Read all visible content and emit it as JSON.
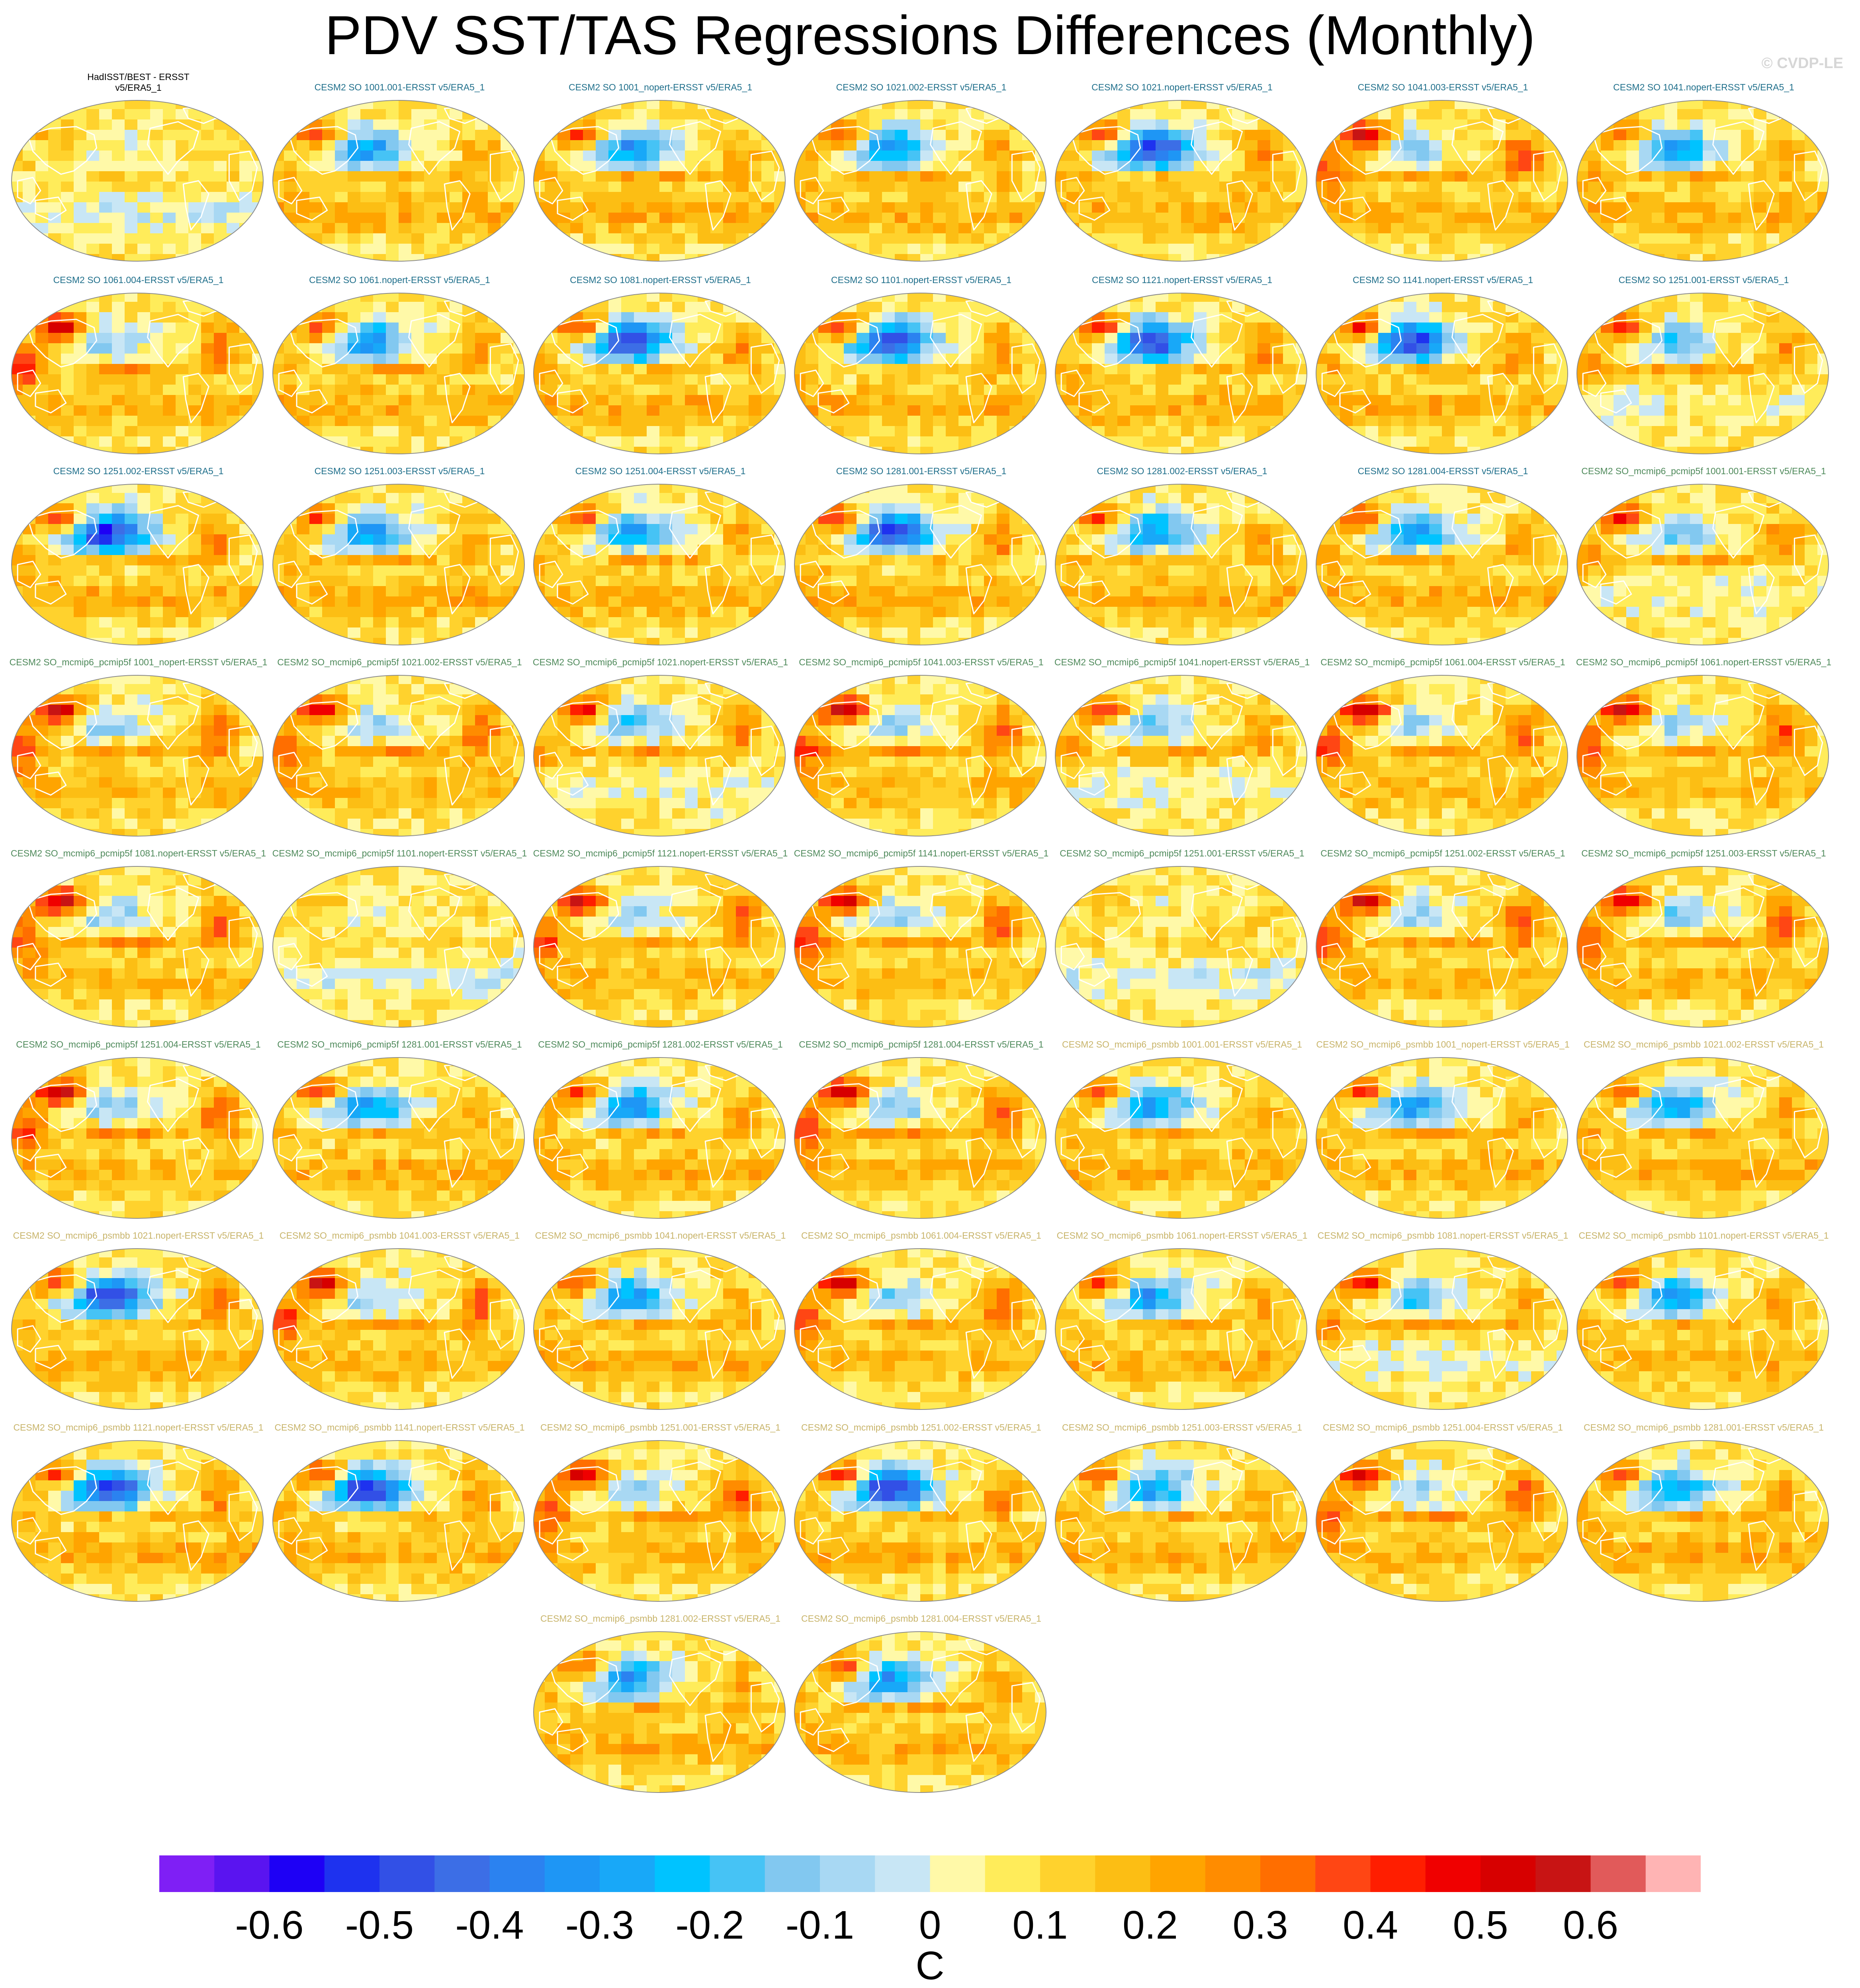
{
  "title": "PDV SST/TAS Regressions Differences (Monthly)",
  "watermark": "© CVDP-LE",
  "colors": {
    "obs_label": "#000000",
    "cesm2_so_label": "#1f6f8b",
    "pcmip5f_label": "#4f8a5b",
    "psmbb_label": "#c8b46a",
    "coastline": "#ffffff"
  },
  "panels": [
    {
      "label": "HadISST/BEST - ERSST v5/ERA5_1",
      "group": "obs",
      "pattern": "weak"
    },
    {
      "label": "CESM2 SO 1001.001-ERSST v5/ERA5_1",
      "group": "cesm2_so",
      "pattern": "cold"
    },
    {
      "label": "CESM2 SO 1001_nopert-ERSST v5/ERA5_1",
      "group": "cesm2_so",
      "pattern": "cold"
    },
    {
      "label": "CESM2 SO 1021.002-ERSST v5/ERA5_1",
      "group": "cesm2_so",
      "pattern": "cold"
    },
    {
      "label": "CESM2 SO 1021.nopert-ERSST v5/ERA5_1",
      "group": "cesm2_so",
      "pattern": "verycold"
    },
    {
      "label": "CESM2 SO 1041.003-ERSST v5/ERA5_1",
      "group": "cesm2_so",
      "pattern": "warm"
    },
    {
      "label": "CESM2 SO 1041.nopert-ERSST v5/ERA5_1",
      "group": "cesm2_so",
      "pattern": "cold"
    },
    {
      "label": "CESM2 SO 1061.004-ERSST v5/ERA5_1",
      "group": "cesm2_so",
      "pattern": "warm"
    },
    {
      "label": "CESM2 SO 1061.nopert-ERSST v5/ERA5_1",
      "group": "cesm2_so",
      "pattern": "cold"
    },
    {
      "label": "CESM2 SO 1081.nopert-ERSST v5/ERA5_1",
      "group": "cesm2_so",
      "pattern": "verycold"
    },
    {
      "label": "CESM2 SO 1101.nopert-ERSST v5/ERA5_1",
      "group": "cesm2_so",
      "pattern": "verycold"
    },
    {
      "label": "CESM2 SO 1121.nopert-ERSST v5/ERA5_1",
      "group": "cesm2_so",
      "pattern": "verycold"
    },
    {
      "label": "CESM2 SO 1141.nopert-ERSST v5/ERA5_1",
      "group": "cesm2_so",
      "pattern": "verycold"
    },
    {
      "label": "CESM2 SO 1251.001-ERSST v5/ERA5_1",
      "group": "cesm2_so",
      "pattern": "mixed"
    },
    {
      "label": "CESM2 SO 1251.002-ERSST v5/ERA5_1",
      "group": "cesm2_so",
      "pattern": "verycold"
    },
    {
      "label": "CESM2 SO 1251.003-ERSST v5/ERA5_1",
      "group": "cesm2_so",
      "pattern": "cold"
    },
    {
      "label": "CESM2 SO 1251.004-ERSST v5/ERA5_1",
      "group": "cesm2_so",
      "pattern": "cold"
    },
    {
      "label": "CESM2 SO 1281.001-ERSST v5/ERA5_1",
      "group": "cesm2_so",
      "pattern": "verycold"
    },
    {
      "label": "CESM2 SO 1281.002-ERSST v5/ERA5_1",
      "group": "cesm2_so",
      "pattern": "cold"
    },
    {
      "label": "CESM2 SO 1281.004-ERSST v5/ERA5_1",
      "group": "cesm2_so",
      "pattern": "cold"
    },
    {
      "label": "CESM2 SO_mcmip6_pcmip5f 1001.001-ERSST v5/ERA5_1",
      "group": "pcmip5f",
      "pattern": "mixed"
    },
    {
      "label": "CESM2 SO_mcmip6_pcmip5f 1001_nopert-ERSST v5/ERA5_1",
      "group": "pcmip5f",
      "pattern": "warm"
    },
    {
      "label": "CESM2 SO_mcmip6_pcmip5f 1021.002-ERSST v5/ERA5_1",
      "group": "pcmip5f",
      "pattern": "warm"
    },
    {
      "label": "CESM2 SO_mcmip6_pcmip5f 1021.nopert-ERSST v5/ERA5_1",
      "group": "pcmip5f",
      "pattern": "mixed"
    },
    {
      "label": "CESM2 SO_mcmip6_pcmip5f 1041.003-ERSST v5/ERA5_1",
      "group": "pcmip5f",
      "pattern": "warm"
    },
    {
      "label": "CESM2 SO_mcmip6_pcmip5f 1041.nopert-ERSST v5/ERA5_1",
      "group": "pcmip5f",
      "pattern": "mixed"
    },
    {
      "label": "CESM2 SO_mcmip6_pcmip5f 1061.004-ERSST v5/ERA5_1",
      "group": "pcmip5f",
      "pattern": "warm"
    },
    {
      "label": "CESM2 SO_mcmip6_pcmip5f 1061.nopert-ERSST v5/ERA5_1",
      "group": "pcmip5f",
      "pattern": "warm"
    },
    {
      "label": "CESM2 SO_mcmip6_pcmip5f 1081.nopert-ERSST v5/ERA5_1",
      "group": "pcmip5f",
      "pattern": "warm"
    },
    {
      "label": "CESM2 SO_mcmip6_pcmip5f 1101.nopert-ERSST v5/ERA5_1",
      "group": "pcmip5f",
      "pattern": "weak"
    },
    {
      "label": "CESM2 SO_mcmip6_pcmip5f 1121.nopert-ERSST v5/ERA5_1",
      "group": "pcmip5f",
      "pattern": "warm"
    },
    {
      "label": "CESM2 SO_mcmip6_pcmip5f 1141.nopert-ERSST v5/ERA5_1",
      "group": "pcmip5f",
      "pattern": "warm"
    },
    {
      "label": "CESM2 SO_mcmip6_pcmip5f 1251.001-ERSST v5/ERA5_1",
      "group": "pcmip5f",
      "pattern": "weak"
    },
    {
      "label": "CESM2 SO_mcmip6_pcmip5f 1251.002-ERSST v5/ERA5_1",
      "group": "pcmip5f",
      "pattern": "warm"
    },
    {
      "label": "CESM2 SO_mcmip6_pcmip5f 1251.003-ERSST v5/ERA5_1",
      "group": "pcmip5f",
      "pattern": "warm"
    },
    {
      "label": "CESM2 SO_mcmip6_pcmip5f 1251.004-ERSST v5/ERA5_1",
      "group": "pcmip5f",
      "pattern": "warm"
    },
    {
      "label": "CESM2 SO_mcmip6_pcmip5f 1281.001-ERSST v5/ERA5_1",
      "group": "pcmip5f",
      "pattern": "cold"
    },
    {
      "label": "CESM2 SO_mcmip6_pcmip5f 1281.002-ERSST v5/ERA5_1",
      "group": "pcmip5f",
      "pattern": "cold"
    },
    {
      "label": "CESM2 SO_mcmip6_pcmip5f 1281.004-ERSST v5/ERA5_1",
      "group": "pcmip5f",
      "pattern": "warm"
    },
    {
      "label": "CESM2 SO_mcmip6_psmbb 1001.001-ERSST v5/ERA5_1",
      "group": "psmbb",
      "pattern": "cold"
    },
    {
      "label": "CESM2 SO_mcmip6_psmbb 1001_nopert-ERSST v5/ERA5_1",
      "group": "psmbb",
      "pattern": "cold"
    },
    {
      "label": "CESM2 SO_mcmip6_psmbb 1021.002-ERSST v5/ERA5_1",
      "group": "psmbb",
      "pattern": "cold"
    },
    {
      "label": "CESM2 SO_mcmip6_psmbb 1021.nopert-ERSST v5/ERA5_1",
      "group": "psmbb",
      "pattern": "verycold"
    },
    {
      "label": "CESM2 SO_mcmip6_psmbb 1041.003-ERSST v5/ERA5_1",
      "group": "psmbb",
      "pattern": "warm"
    },
    {
      "label": "CESM2 SO_mcmip6_psmbb 1041.nopert-ERSST v5/ERA5_1",
      "group": "psmbb",
      "pattern": "cold"
    },
    {
      "label": "CESM2 SO_mcmip6_psmbb 1061.004-ERSST v5/ERA5_1",
      "group": "psmbb",
      "pattern": "warm"
    },
    {
      "label": "CESM2 SO_mcmip6_psmbb 1061.nopert-ERSST v5/ERA5_1",
      "group": "psmbb",
      "pattern": "cold"
    },
    {
      "label": "CESM2 SO_mcmip6_psmbb 1081.nopert-ERSST v5/ERA5_1",
      "group": "psmbb",
      "pattern": "mixed"
    },
    {
      "label": "CESM2 SO_mcmip6_psmbb 1101.nopert-ERSST v5/ERA5_1",
      "group": "psmbb",
      "pattern": "cold"
    },
    {
      "label": "CESM2 SO_mcmip6_psmbb 1121.nopert-ERSST v5/ERA5_1",
      "group": "psmbb",
      "pattern": "verycold"
    },
    {
      "label": "CESM2 SO_mcmip6_psmbb 1141.nopert-ERSST v5/ERA5_1",
      "group": "psmbb",
      "pattern": "verycold"
    },
    {
      "label": "CESM2 SO_mcmip6_psmbb 1251.001-ERSST v5/ERA5_1",
      "group": "psmbb",
      "pattern": "warm"
    },
    {
      "label": "CESM2 SO_mcmip6_psmbb 1251.002-ERSST v5/ERA5_1",
      "group": "psmbb",
      "pattern": "verycold"
    },
    {
      "label": "CESM2 SO_mcmip6_psmbb 1251.003-ERSST v5/ERA5_1",
      "group": "psmbb",
      "pattern": "cold"
    },
    {
      "label": "CESM2 SO_mcmip6_psmbb 1251.004-ERSST v5/ERA5_1",
      "group": "psmbb",
      "pattern": "warm"
    },
    {
      "label": "CESM2 SO_mcmip6_psmbb 1281.001-ERSST v5/ERA5_1",
      "group": "psmbb",
      "pattern": "cold"
    },
    {
      "label": "CESM2 SO_mcmip6_psmbb 1281.002-ERSST v5/ERA5_1",
      "group": "psmbb",
      "pattern": "cold"
    },
    {
      "label": "CESM2 SO_mcmip6_psmbb 1281.004-ERSST v5/ERA5_1",
      "group": "psmbb",
      "pattern": "cold"
    }
  ],
  "colorbar": {
    "units": "C",
    "tick_labels": [
      "-0.6",
      "-0.5",
      "-0.4",
      "-0.3",
      "-0.2",
      "-0.1",
      "0",
      "0.1",
      "0.2",
      "0.3",
      "0.4",
      "0.5",
      "0.6"
    ],
    "tick_values": [
      -0.6,
      -0.5,
      -0.4,
      -0.3,
      -0.2,
      -0.1,
      0,
      0.1,
      0.2,
      0.3,
      0.4,
      0.5,
      0.6
    ],
    "range": [
      -0.7,
      0.7
    ],
    "colors": [
      "#7f1ff5",
      "#5a14f0",
      "#1e00f5",
      "#1e32ef",
      "#3250e6",
      "#3c6ee6",
      "#2b82f0",
      "#1e96f5",
      "#18a8f8",
      "#00c3ff",
      "#46c3f5",
      "#82c8f0",
      "#a8d8f3",
      "#c8e6f5",
      "#fff9a8",
      "#ffec5a",
      "#ffd22d",
      "#fcbe14",
      "#ffa400",
      "#ff8c00",
      "#ff6e00",
      "#ff4614",
      "#ff1e00",
      "#f00000",
      "#d70000",
      "#c81414",
      "#e15a5a",
      "#ffb4b4"
    ]
  }
}
